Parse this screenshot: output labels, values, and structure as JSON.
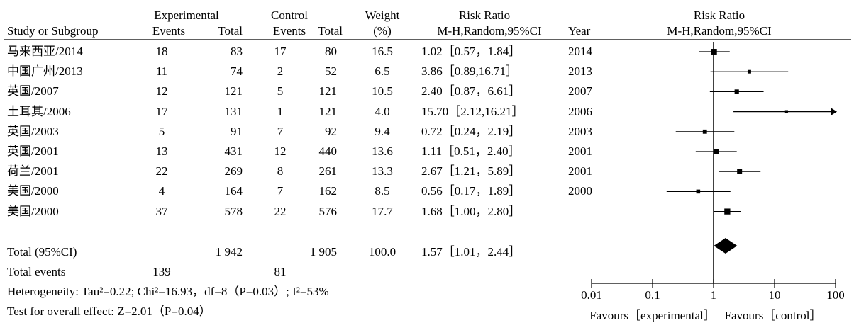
{
  "header": {
    "experimental": "Experimental",
    "control": "Control",
    "weight": "Weight",
    "weight_unit": "(%)",
    "risk_ratio": "Risk Ratio",
    "rr_method": "M-H,Random,95%CI",
    "study": "Study or Subgroup",
    "events": "Events",
    "total": "Total",
    "year": "Year",
    "plot_title": "Risk Ratio",
    "plot_method": "M-H,Random,95%CI"
  },
  "rows": [
    {
      "study": "马来西亚/2014",
      "exp_events": "18",
      "exp_total": "83",
      "ctl_events": "17",
      "ctl_total": "80",
      "weight": "16.5",
      "rr_text": "1.02［0.57，1.84］",
      "year": "2014"
    },
    {
      "study": "中国广州/2013",
      "exp_events": "11",
      "exp_total": "74",
      "ctl_events": "2",
      "ctl_total": "52",
      "weight": "6.5",
      "rr_text": "3.86［0.89,16.71］",
      "year": "2013"
    },
    {
      "study": "英国/2007",
      "exp_events": "12",
      "exp_total": "121",
      "ctl_events": "5",
      "ctl_total": "121",
      "weight": "10.5",
      "rr_text": "2.40［0.87，6.61］",
      "year": "2007"
    },
    {
      "study": "土耳其/2006",
      "exp_events": "17",
      "exp_total": "131",
      "ctl_events": "1",
      "ctl_total": "121",
      "weight": "4.0",
      "rr_text": "15.70［2.12,16.21］",
      "year": "2006"
    },
    {
      "study": "英国/2003",
      "exp_events": "5",
      "exp_total": "91",
      "ctl_events": "7",
      "ctl_total": "92",
      "weight": "9.4",
      "rr_text": "0.72［0.24，2.19］",
      "year": "2003"
    },
    {
      "study": "英国/2001",
      "exp_events": "13",
      "exp_total": "431",
      "ctl_events": "12",
      "ctl_total": "440",
      "weight": "13.6",
      "rr_text": "1.11［0.51，2.40］",
      "year": "2001"
    },
    {
      "study": "荷兰/2001",
      "exp_events": "22",
      "exp_total": "269",
      "ctl_events": "8",
      "ctl_total": "261",
      "weight": "13.3",
      "rr_text": "2.67［1.21，5.89］",
      "year": "2001"
    },
    {
      "study": "美国/2000",
      "exp_events": "4",
      "exp_total": "164",
      "ctl_events": "7",
      "ctl_total": "162",
      "weight": "8.5",
      "rr_text": "0.56［0.17，1.89］",
      "year": "2000"
    },
    {
      "study": "美国/2000",
      "exp_events": "37",
      "exp_total": "578",
      "ctl_events": "22",
      "ctl_total": "576",
      "weight": "17.7",
      "rr_text": "1.68［1.00，2.80］",
      "year": ""
    }
  ],
  "total": {
    "label": "Total (95%CI)",
    "exp_total": "1 942",
    "ctl_total": "1 905",
    "weight": "100.0",
    "rr_text": "1.57［1.01，2.44］"
  },
  "total_events": {
    "label": "Total events",
    "exp": "139",
    "ctl": "81"
  },
  "heterogeneity": "Heterogeneity: Tau²=0.22; Chi²=16.93，df=8（P=0.03）; I²=53%",
  "overall_effect": "Test for overall effect: Z=2.01（P=0.04）",
  "axis": {
    "ticks": [
      "0.01",
      "0.1",
      "1",
      "10",
      "100"
    ],
    "favours_left": "Favours［experimental］",
    "favours_right": "Favours［control］"
  },
  "chart_data": {
    "type": "forest",
    "scale": "log",
    "xlim": [
      0.01,
      100
    ],
    "xticks": [
      0.01,
      0.1,
      1,
      10,
      100
    ],
    "reference_line": 1,
    "studies": [
      {
        "rr": 1.02,
        "lo": 0.57,
        "hi": 1.84,
        "weight": 16.5
      },
      {
        "rr": 3.86,
        "lo": 0.89,
        "hi": 16.71,
        "weight": 6.5
      },
      {
        "rr": 2.4,
        "lo": 0.87,
        "hi": 6.61,
        "weight": 10.5
      },
      {
        "rr": 15.7,
        "lo": 2.12,
        "hi": 16.21,
        "weight": 4.0,
        "arrow": true
      },
      {
        "rr": 0.72,
        "lo": 0.24,
        "hi": 2.19,
        "weight": 9.4
      },
      {
        "rr": 1.11,
        "lo": 0.51,
        "hi": 2.4,
        "weight": 13.6
      },
      {
        "rr": 2.67,
        "lo": 1.21,
        "hi": 5.89,
        "weight": 13.3
      },
      {
        "rr": 0.56,
        "lo": 0.17,
        "hi": 1.89,
        "weight": 8.5
      },
      {
        "rr": 1.68,
        "lo": 1.0,
        "hi": 2.8,
        "weight": 17.7
      }
    ],
    "pooled": {
      "rr": 1.57,
      "lo": 1.01,
      "hi": 2.44
    }
  }
}
